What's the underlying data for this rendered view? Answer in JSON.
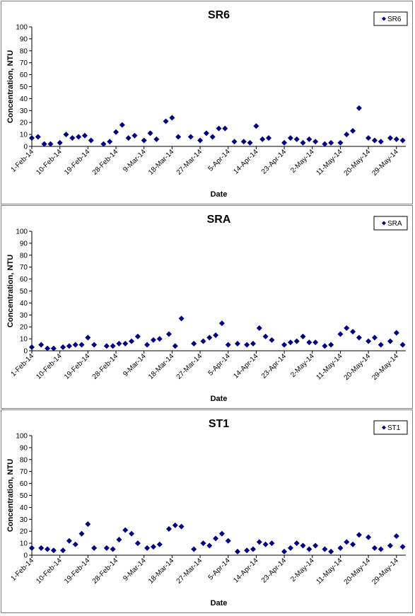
{
  "chart_data": [
    {
      "type": "scatter",
      "title": "SR6",
      "xlabel": "Date",
      "ylabel": "Concentration, NTU",
      "ylim": [
        0,
        100
      ],
      "yticks": [
        0,
        10,
        20,
        30,
        40,
        50,
        60,
        70,
        80,
        90,
        100
      ],
      "xlim": [
        "2014-02-01",
        "2014-06-01"
      ],
      "xtick_labels": [
        "1-Feb-14",
        "10-Feb-14",
        "19-Feb-14",
        "28-Feb-14",
        "9-Mar-14",
        "18-Mar-14",
        "27-Mar-14",
        "5-Apr-14",
        "14-Apr-14",
        "23-Apr-14",
        "2-May-14",
        "11-May-14",
        "20-May-14",
        "29-May-14"
      ],
      "legend": "top-right",
      "series": [
        {
          "name": "SR6",
          "color": "#000080",
          "points": [
            [
              "2014-02-01",
              7
            ],
            [
              "2014-02-03",
              8
            ],
            [
              "2014-02-05",
              2
            ],
            [
              "2014-02-07",
              2
            ],
            [
              "2014-02-10",
              3
            ],
            [
              "2014-02-12",
              10
            ],
            [
              "2014-02-14",
              7
            ],
            [
              "2014-02-16",
              8
            ],
            [
              "2014-02-18",
              9
            ],
            [
              "2014-02-20",
              5
            ],
            [
              "2014-02-24",
              2
            ],
            [
              "2014-02-26",
              4
            ],
            [
              "2014-02-28",
              12
            ],
            [
              "2014-03-02",
              18
            ],
            [
              "2014-03-04",
              7
            ],
            [
              "2014-03-06",
              9
            ],
            [
              "2014-03-09",
              5
            ],
            [
              "2014-03-11",
              11
            ],
            [
              "2014-03-13",
              6
            ],
            [
              "2014-03-16",
              21
            ],
            [
              "2014-03-18",
              24
            ],
            [
              "2014-03-20",
              8
            ],
            [
              "2014-03-24",
              8
            ],
            [
              "2014-03-27",
              5
            ],
            [
              "2014-03-29",
              11
            ],
            [
              "2014-03-31",
              8
            ],
            [
              "2014-04-02",
              15
            ],
            [
              "2014-04-04",
              15
            ],
            [
              "2014-04-07",
              4
            ],
            [
              "2014-04-10",
              4
            ],
            [
              "2014-04-12",
              3
            ],
            [
              "2014-04-14",
              17
            ],
            [
              "2014-04-16",
              6
            ],
            [
              "2014-04-18",
              7
            ],
            [
              "2014-04-23",
              3
            ],
            [
              "2014-04-25",
              7
            ],
            [
              "2014-04-27",
              6
            ],
            [
              "2014-04-29",
              3
            ],
            [
              "2014-05-01",
              6
            ],
            [
              "2014-05-03",
              4
            ],
            [
              "2014-05-06",
              2
            ],
            [
              "2014-05-08",
              3
            ],
            [
              "2014-05-11",
              3
            ],
            [
              "2014-05-13",
              10
            ],
            [
              "2014-05-15",
              13
            ],
            [
              "2014-05-17",
              32
            ],
            [
              "2014-05-20",
              7
            ],
            [
              "2014-05-22",
              5
            ],
            [
              "2014-05-24",
              4
            ],
            [
              "2014-05-27",
              7
            ],
            [
              "2014-05-29",
              6
            ],
            [
              "2014-05-31",
              5
            ]
          ]
        }
      ]
    },
    {
      "type": "scatter",
      "title": "SRA",
      "xlabel": "Date",
      "ylabel": "Concentration, NTU",
      "ylim": [
        0,
        100
      ],
      "yticks": [
        0,
        10,
        20,
        30,
        40,
        50,
        60,
        70,
        80,
        90,
        100
      ],
      "xlim": [
        "2014-02-01",
        "2014-06-01"
      ],
      "xtick_labels": [
        "1-Feb-14",
        "10-Feb-14",
        "19-Feb-14",
        "28-Feb-14",
        "9-Mar-14",
        "18-Mar-14",
        "27-Mar-14",
        "5-Apr-14",
        "14-Apr-14",
        "23-Apr-14",
        "2-May-14",
        "11-May-14",
        "20-May-14",
        "29-May-14"
      ],
      "legend": "top-right",
      "series": [
        {
          "name": "SRA",
          "color": "#000080",
          "points": [
            [
              "2014-02-01",
              3
            ],
            [
              "2014-02-04",
              5
            ],
            [
              "2014-02-06",
              2
            ],
            [
              "2014-02-08",
              2
            ],
            [
              "2014-02-11",
              3
            ],
            [
              "2014-02-13",
              4
            ],
            [
              "2014-02-15",
              5
            ],
            [
              "2014-02-17",
              5
            ],
            [
              "2014-02-19",
              11
            ],
            [
              "2014-02-21",
              5
            ],
            [
              "2014-02-25",
              4
            ],
            [
              "2014-02-27",
              4
            ],
            [
              "2014-03-01",
              6
            ],
            [
              "2014-03-03",
              6
            ],
            [
              "2014-03-05",
              8
            ],
            [
              "2014-03-07",
              12
            ],
            [
              "2014-03-10",
              5
            ],
            [
              "2014-03-12",
              9
            ],
            [
              "2014-03-14",
              10
            ],
            [
              "2014-03-17",
              14
            ],
            [
              "2014-03-19",
              4
            ],
            [
              "2014-03-21",
              27
            ],
            [
              "2014-03-25",
              6
            ],
            [
              "2014-03-28",
              8
            ],
            [
              "2014-03-30",
              11
            ],
            [
              "2014-04-01",
              13
            ],
            [
              "2014-04-03",
              23
            ],
            [
              "2014-04-05",
              5
            ],
            [
              "2014-04-08",
              6
            ],
            [
              "2014-04-11",
              5
            ],
            [
              "2014-04-13",
              6
            ],
            [
              "2014-04-15",
              19
            ],
            [
              "2014-04-17",
              12
            ],
            [
              "2014-04-19",
              9
            ],
            [
              "2014-04-23",
              5
            ],
            [
              "2014-04-25",
              7
            ],
            [
              "2014-04-27",
              8
            ],
            [
              "2014-04-29",
              12
            ],
            [
              "2014-05-01",
              7
            ],
            [
              "2014-05-03",
              7
            ],
            [
              "2014-05-06",
              4
            ],
            [
              "2014-05-08",
              5
            ],
            [
              "2014-05-11",
              14
            ],
            [
              "2014-05-13",
              19
            ],
            [
              "2014-05-15",
              16
            ],
            [
              "2014-05-17",
              11
            ],
            [
              "2014-05-20",
              8
            ],
            [
              "2014-05-22",
              11
            ],
            [
              "2014-05-24",
              5
            ],
            [
              "2014-05-27",
              8
            ],
            [
              "2014-05-29",
              15
            ],
            [
              "2014-05-31",
              5
            ]
          ]
        }
      ]
    },
    {
      "type": "scatter",
      "title": "ST1",
      "xlabel": "Date",
      "ylabel": "Concentration, NTU",
      "ylim": [
        0,
        100
      ],
      "yticks": [
        0,
        10,
        20,
        30,
        40,
        50,
        60,
        70,
        80,
        90,
        100
      ],
      "xlim": [
        "2014-02-01",
        "2014-06-01"
      ],
      "xtick_labels": [
        "1-Feb-14",
        "10-Feb-14",
        "19-Feb-14",
        "28-Feb-14",
        "9-Mar-14",
        "18-Mar-14",
        "27-Mar-14",
        "5-Apr-14",
        "14-Apr-14",
        "23-Apr-14",
        "2-May-14",
        "11-May-14",
        "20-May-14",
        "29-May-14"
      ],
      "legend": "top-right",
      "series": [
        {
          "name": "ST1",
          "color": "#000080",
          "points": [
            [
              "2014-02-01",
              6
            ],
            [
              "2014-02-04",
              6
            ],
            [
              "2014-02-06",
              5
            ],
            [
              "2014-02-08",
              4
            ],
            [
              "2014-02-11",
              4
            ],
            [
              "2014-02-13",
              12
            ],
            [
              "2014-02-15",
              9
            ],
            [
              "2014-02-17",
              18
            ],
            [
              "2014-02-19",
              26
            ],
            [
              "2014-02-21",
              6
            ],
            [
              "2014-02-25",
              6
            ],
            [
              "2014-02-27",
              5
            ],
            [
              "2014-03-01",
              13
            ],
            [
              "2014-03-03",
              21
            ],
            [
              "2014-03-05",
              18
            ],
            [
              "2014-03-07",
              10
            ],
            [
              "2014-03-10",
              6
            ],
            [
              "2014-03-12",
              7
            ],
            [
              "2014-03-14",
              9
            ],
            [
              "2014-03-17",
              22
            ],
            [
              "2014-03-19",
              25
            ],
            [
              "2014-03-21",
              24
            ],
            [
              "2014-03-25",
              5
            ],
            [
              "2014-03-28",
              10
            ],
            [
              "2014-03-30",
              8
            ],
            [
              "2014-04-01",
              14
            ],
            [
              "2014-04-03",
              18
            ],
            [
              "2014-04-05",
              12
            ],
            [
              "2014-04-08",
              3
            ],
            [
              "2014-04-11",
              4
            ],
            [
              "2014-04-13",
              5
            ],
            [
              "2014-04-15",
              11
            ],
            [
              "2014-04-17",
              9
            ],
            [
              "2014-04-19",
              10
            ],
            [
              "2014-04-23",
              3
            ],
            [
              "2014-04-25",
              6
            ],
            [
              "2014-04-27",
              10
            ],
            [
              "2014-04-29",
              8
            ],
            [
              "2014-05-01",
              5
            ],
            [
              "2014-05-03",
              8
            ],
            [
              "2014-05-06",
              5
            ],
            [
              "2014-05-08",
              3
            ],
            [
              "2014-05-11",
              6
            ],
            [
              "2014-05-13",
              11
            ],
            [
              "2014-05-15",
              9
            ],
            [
              "2014-05-17",
              17
            ],
            [
              "2014-05-20",
              15
            ],
            [
              "2014-05-22",
              6
            ],
            [
              "2014-05-24",
              5
            ],
            [
              "2014-05-27",
              8
            ],
            [
              "2014-05-29",
              16
            ],
            [
              "2014-05-31",
              7
            ]
          ]
        }
      ]
    }
  ]
}
